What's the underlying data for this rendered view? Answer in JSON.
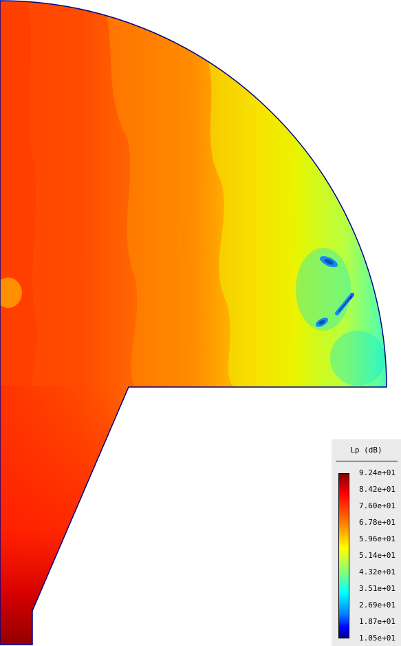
{
  "legend": {
    "title": "Lp (dB)",
    "ticks": [
      "9.24e+01",
      "8.42e+01",
      "7.60e+01",
      "6.78e+01",
      "5.96e+01",
      "5.14e+01",
      "4.32e+01",
      "3.51e+01",
      "2.69e+01",
      "1.87e+01",
      "1.05e+01"
    ],
    "colormap": [
      "#7f0000",
      "#ff0000",
      "#ff7f00",
      "#ffff00",
      "#7fff7f",
      "#00ffff",
      "#007fff",
      "#0000ff",
      "#00007f"
    ]
  },
  "field": {
    "outline_color": "#00008b",
    "min_db": 10.5,
    "max_db": 92.4
  }
}
